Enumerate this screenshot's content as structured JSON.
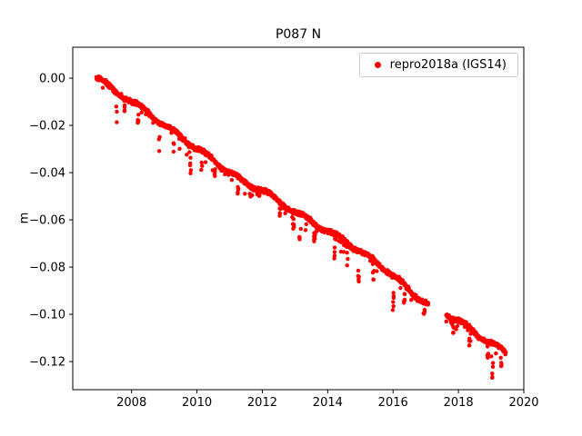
{
  "chart_data": {
    "type": "scatter",
    "title": "P087 N",
    "xlabel": "",
    "ylabel": "m",
    "legend_label": "repro2018a (IGS14)",
    "legend_position": "upper right",
    "marker_color": "#ff0000",
    "marker_radius_px": 2.2,
    "background_color": "#ffffff",
    "axis_color": "#000000",
    "grid": false,
    "xlim": [
      2006.2,
      2020.0
    ],
    "ylim": [
      -0.1319,
      0.0131
    ],
    "xticks": [
      2008,
      2010,
      2012,
      2014,
      2016,
      2018,
      2020
    ],
    "yticks": [
      0.0,
      -0.02,
      -0.04,
      -0.06,
      -0.08,
      -0.1,
      -0.12
    ],
    "x_start": 2006.92,
    "x_end": 2019.45,
    "sample_step_years": 0.006,
    "noise_sigma_m": 0.0013,
    "seasonal_amp_m": 0.0008,
    "tail_probability": 0.03,
    "tail_max_m": 0.007,
    "seed": 42,
    "gaps": [
      [
        2017.08,
        2017.62
      ]
    ],
    "trend_points": [
      [
        2006.92,
        0.0005
      ],
      [
        2007.0,
        0.0
      ],
      [
        2007.25,
        -0.003
      ],
      [
        2007.5,
        -0.0055
      ],
      [
        2008.0,
        -0.01
      ],
      [
        2008.5,
        -0.0145
      ],
      [
        2009.0,
        -0.02
      ],
      [
        2009.5,
        -0.0245
      ],
      [
        2010.0,
        -0.03
      ],
      [
        2010.5,
        -0.0345
      ],
      [
        2011.0,
        -0.04
      ],
      [
        2011.5,
        -0.0445
      ],
      [
        2012.0,
        -0.0475
      ],
      [
        2012.5,
        -0.052
      ],
      [
        2013.0,
        -0.057
      ],
      [
        2013.5,
        -0.0605
      ],
      [
        2014.0,
        -0.065
      ],
      [
        2014.5,
        -0.0685
      ],
      [
        2015.0,
        -0.0735
      ],
      [
        2015.5,
        -0.078
      ],
      [
        2016.0,
        -0.0835
      ],
      [
        2016.5,
        -0.09
      ],
      [
        2017.05,
        -0.0955
      ],
      [
        2017.65,
        -0.1
      ],
      [
        2018.0,
        -0.1025
      ],
      [
        2018.5,
        -0.108
      ],
      [
        2019.0,
        -0.112
      ],
      [
        2019.45,
        -0.1165
      ]
    ],
    "outliers": [
      [
        2007.55,
        0.013
      ],
      [
        2007.8,
        0.008
      ],
      [
        2008.2,
        0.009
      ],
      [
        2008.85,
        0.013
      ],
      [
        2009.3,
        0.01
      ],
      [
        2009.8,
        0.014
      ],
      [
        2010.15,
        0.009
      ],
      [
        2010.55,
        0.007
      ],
      [
        2011.25,
        0.007
      ],
      [
        2011.9,
        0.006
      ],
      [
        2012.55,
        0.006
      ],
      [
        2012.95,
        0.009
      ],
      [
        2013.15,
        0.011
      ],
      [
        2013.6,
        0.008
      ],
      [
        2014.2,
        0.013
      ],
      [
        2014.6,
        0.01
      ],
      [
        2014.95,
        0.014
      ],
      [
        2015.4,
        0.009
      ],
      [
        2016.0,
        0.016
      ],
      [
        2016.35,
        0.008
      ],
      [
        2016.95,
        0.007
      ],
      [
        2017.85,
        0.007
      ],
      [
        2018.35,
        0.008
      ],
      [
        2018.9,
        0.009
      ],
      [
        2019.05,
        0.015
      ],
      [
        2019.3,
        0.008
      ]
    ]
  }
}
